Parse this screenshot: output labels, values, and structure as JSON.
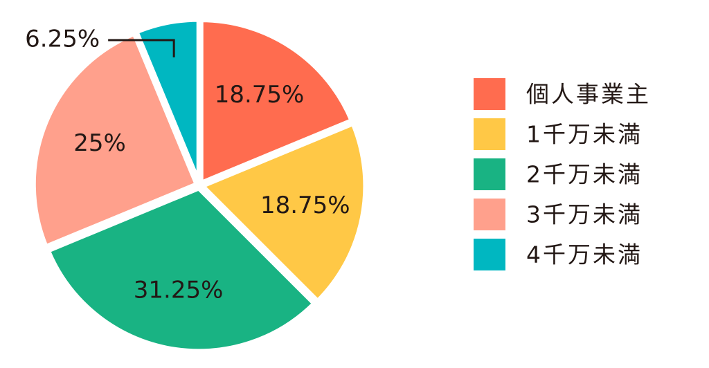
{
  "chart_data": {
    "type": "pie",
    "categories": [
      "個人事業主",
      "1千万未満",
      "2千万未満",
      "3千万未満",
      "4千万未満"
    ],
    "values": [
      18.75,
      18.75,
      31.25,
      25,
      6.25
    ],
    "value_labels": [
      "18.75%",
      "18.75%",
      "31.25%",
      "25%",
      "6.25%"
    ],
    "colors": [
      "#ff6c4f",
      "#ffc846",
      "#19b383",
      "#ffa08c",
      "#00b7c1"
    ],
    "legend": "right"
  }
}
